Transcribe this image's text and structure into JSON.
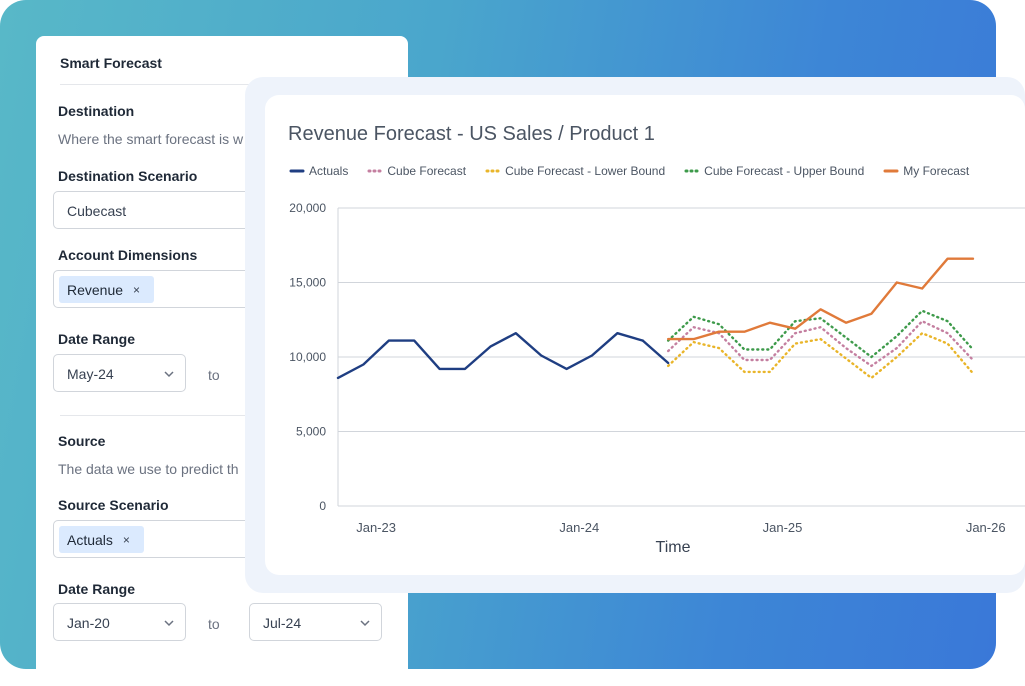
{
  "panel": {
    "title": "Smart Forecast",
    "destination": {
      "heading": "Destination",
      "description": "Where the smart forecast is w",
      "scenario_label": "Destination Scenario",
      "scenario_value": "Cubecast",
      "account_label": "Account Dimensions",
      "account_chip": "Revenue",
      "date_range_label": "Date Range",
      "date_from": "May-24",
      "to_label": "to"
    },
    "source": {
      "heading": "Source",
      "description": "The data we use to predict th",
      "scenario_label": "Source Scenario",
      "scenario_chip": "Actuals",
      "date_range_label": "Date Range",
      "date_from": "Jan-20",
      "to_label": "to",
      "date_to": "Jul-24"
    },
    "chip_remove": "×"
  },
  "chart_data": {
    "type": "line",
    "title": "Revenue Forecast - US Sales / Product 1",
    "xlabel": "Time",
    "ylabel": "",
    "ylim": [
      0,
      20000
    ],
    "yticks": [
      0,
      5000,
      10000,
      15000,
      20000
    ],
    "ytick_labels": [
      "0",
      "5,000",
      "10,000",
      "15,000",
      "20,000"
    ],
    "xticks": [
      {
        "label": "Jan-23",
        "index": 1.5
      },
      {
        "label": "Jan-24",
        "index": 9.5
      },
      {
        "label": "Jan-25",
        "index": 17.5
      },
      {
        "label": "Jan-26",
        "index": 25.5
      }
    ],
    "x_count": 27,
    "series": [
      {
        "name": "Actuals",
        "color": "#1f3e82",
        "style": "solid",
        "x": [
          0,
          1,
          2,
          3,
          4,
          5,
          6,
          7,
          8,
          9,
          10,
          11,
          12
        ],
        "values": [
          8600,
          9500,
          11100,
          11100,
          9200,
          9200,
          10700,
          11600,
          10100,
          9200,
          10100,
          11600,
          11100
        ]
      },
      {
        "name": "Actuals (tail)",
        "legend": false,
        "color": "#1f3e82",
        "style": "solid",
        "x": [
          12,
          13
        ],
        "values": [
          11100,
          9600
        ]
      },
      {
        "name": "Cube Forecast",
        "color": "#c47fa0",
        "style": "dotted",
        "x": [
          13,
          14,
          15,
          16,
          17,
          18,
          19,
          20,
          21,
          22,
          23,
          24,
          25
        ],
        "values": [
          10400,
          12000,
          11600,
          9800,
          9800,
          11600,
          12000,
          10600,
          9400,
          10600,
          12400,
          11600,
          9800
        ]
      },
      {
        "name": "Cube Forecast - Lower Bound",
        "color": "#e9b52a",
        "style": "dotted",
        "x": [
          13,
          14,
          15,
          16,
          17,
          18,
          19,
          20,
          21,
          22,
          23,
          24,
          25
        ],
        "values": [
          9400,
          11000,
          10600,
          9000,
          9000,
          10900,
          11200,
          9900,
          8600,
          10000,
          11600,
          10900,
          8900
        ]
      },
      {
        "name": "Cube Forecast - Upper Bound",
        "color": "#3d9a4a",
        "style": "dotted",
        "x": [
          13,
          14,
          15,
          16,
          17,
          18,
          19,
          20,
          21,
          22,
          23,
          24,
          25
        ],
        "values": [
          11100,
          12700,
          12200,
          10500,
          10500,
          12400,
          12600,
          11300,
          10000,
          11400,
          13100,
          12400,
          10500
        ]
      },
      {
        "name": "My Forecast",
        "color": "#e07a3a",
        "style": "solid",
        "x": [
          13,
          14,
          15,
          16,
          17,
          18,
          19,
          20,
          21,
          22,
          23,
          24,
          25
        ],
        "values": [
          11200,
          11200,
          11700,
          11700,
          12300,
          11900,
          13200,
          12300,
          12900,
          15000,
          14600,
          16600,
          16600
        ]
      }
    ]
  }
}
